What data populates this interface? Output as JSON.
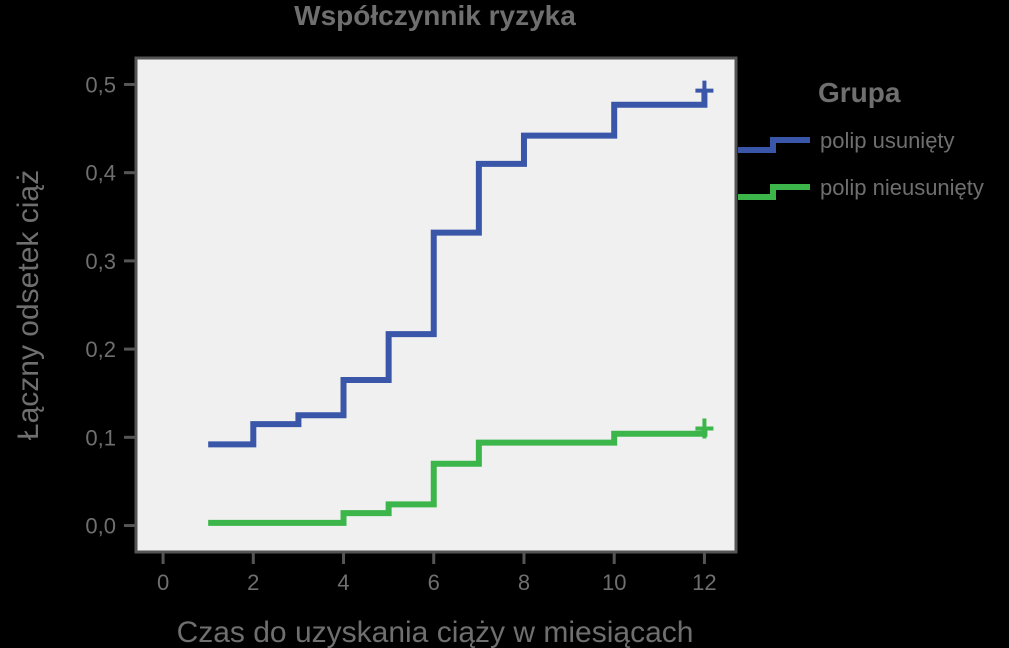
{
  "chart_data": {
    "type": "line",
    "title": "Współczynnik ryzyka",
    "xlabel": "Czas do uzyskania ciąży w miesiącach",
    "ylabel": "Łączny odsetek ciąż",
    "xlim": [
      -0.6,
      12.7
    ],
    "ylim": [
      -0.03,
      0.53
    ],
    "xticks": [
      0,
      2,
      4,
      6,
      8,
      10,
      12
    ],
    "xtick_labels": [
      "0",
      "2",
      "4",
      "6",
      "8",
      "10",
      "12"
    ],
    "yticks": [
      0.0,
      0.1,
      0.2,
      0.3,
      0.4,
      0.5
    ],
    "ytick_labels": [
      "0,0",
      "0,1",
      "0,2",
      "0,3",
      "0,4",
      "0,5"
    ],
    "grid": false,
    "step": true,
    "legend": {
      "title": "Grupa",
      "position": "right"
    },
    "series": [
      {
        "name": "polip usunięty",
        "color": "#3a56a8",
        "x": [
          1,
          2,
          3,
          4,
          5,
          6,
          7,
          8,
          10,
          12
        ],
        "y": [
          0.092,
          0.115,
          0.125,
          0.165,
          0.217,
          0.332,
          0.41,
          0.442,
          0.477,
          0.493
        ],
        "censored_at": [
          12
        ]
      },
      {
        "name": "polip nieusunięty",
        "color": "#3cb54a",
        "x": [
          1,
          4,
          5,
          6,
          7,
          10,
          12
        ],
        "y": [
          0.003,
          0.014,
          0.024,
          0.07,
          0.094,
          0.104,
          0.11
        ],
        "censored_at": [
          12
        ]
      }
    ]
  }
}
